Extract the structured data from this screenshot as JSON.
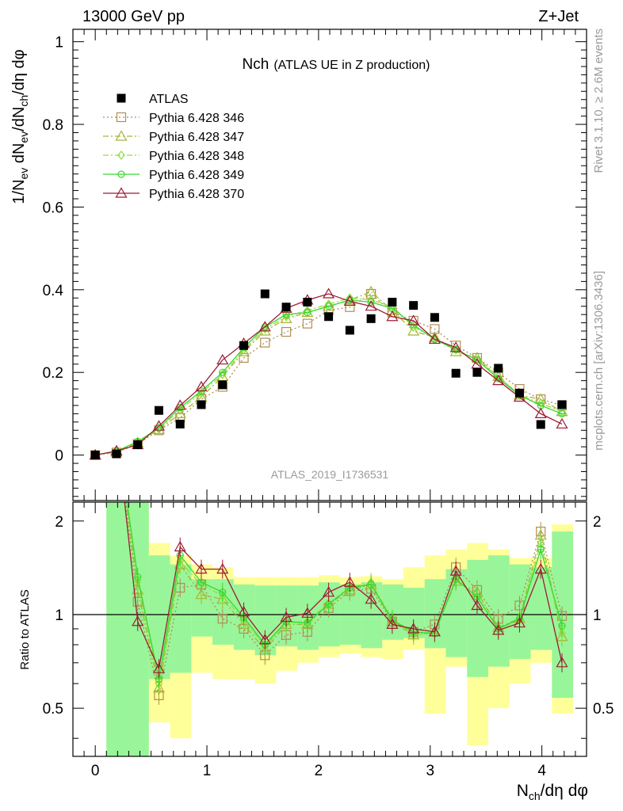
{
  "header": {
    "energy": "13000 GeV pp",
    "process": "Z+Jet",
    "side_top": "Rivet 3.1.10, ≥ 2.6M events",
    "side_bottom": "mcplots.cern.ch [arXiv:1306.3436]",
    "analysis": "ATLAS_2019_I1736531"
  },
  "chart_data": [
    {
      "type": "scatter",
      "title_main": "Nch",
      "title_sub": "(ATLAS UE in Z production)",
      "ylabel": "1/N_ev dN_ev/dN_ch/dη dφ",
      "xlim": [
        -0.2,
        4.4
      ],
      "ylim": [
        -0.11,
        1.03
      ],
      "yticks": [
        "0",
        "0.2",
        "0.4",
        "0.6",
        "0.8",
        "1"
      ],
      "legend_position": "top-left",
      "x": [
        0.0,
        0.19,
        0.38,
        0.57,
        0.76,
        0.95,
        1.14,
        1.33,
        1.52,
        1.71,
        1.9,
        2.09,
        2.28,
        2.47,
        2.66,
        2.85,
        3.04,
        3.23,
        3.42,
        3.61,
        3.8,
        3.99,
        4.18
      ],
      "series": [
        {
          "name": "ATLAS",
          "color": "#000000",
          "marker": "filled-square",
          "values": [
            0.0,
            0.003,
            0.025,
            0.108,
            0.075,
            0.122,
            0.17,
            0.265,
            0.39,
            0.358,
            0.37,
            0.335,
            0.302,
            0.33,
            0.37,
            0.362,
            0.333,
            0.198,
            0.2,
            0.21,
            0.15,
            0.074,
            0.122
          ]
        },
        {
          "name": "Pythia 6.428 346",
          "color": "#b08d57",
          "marker": "open-square",
          "dash": "2,3",
          "values": [
            0.0,
            0.006,
            0.027,
            0.06,
            0.09,
            0.135,
            0.165,
            0.235,
            0.272,
            0.298,
            0.318,
            0.35,
            0.358,
            0.39,
            0.345,
            0.325,
            0.305,
            0.265,
            0.235,
            0.2,
            0.16,
            0.135,
            0.12
          ]
        },
        {
          "name": "Pythia 6.428 347",
          "color": "#a8b530",
          "marker": "open-triangle",
          "dash": "7,3,2,3",
          "values": [
            0.0,
            0.007,
            0.03,
            0.062,
            0.1,
            0.14,
            0.19,
            0.25,
            0.3,
            0.33,
            0.345,
            0.36,
            0.375,
            0.395,
            0.35,
            0.3,
            0.285,
            0.25,
            0.235,
            0.19,
            0.145,
            0.135,
            0.105
          ]
        },
        {
          "name": "Pythia 6.428 348",
          "color": "#90e040",
          "marker": "open-diamond",
          "dash": "7,3,2,3",
          "values": [
            0.0,
            0.008,
            0.032,
            0.063,
            0.11,
            0.15,
            0.195,
            0.255,
            0.305,
            0.335,
            0.35,
            0.365,
            0.38,
            0.375,
            0.36,
            0.31,
            0.285,
            0.255,
            0.23,
            0.19,
            0.145,
            0.125,
            0.105
          ]
        },
        {
          "name": "Pythia 6.428 349",
          "color": "#38d830",
          "marker": "open-circle-cross",
          "dash": "",
          "values": [
            0.0,
            0.009,
            0.033,
            0.065,
            0.115,
            0.155,
            0.2,
            0.26,
            0.31,
            0.34,
            0.345,
            0.36,
            0.375,
            0.37,
            0.355,
            0.315,
            0.28,
            0.255,
            0.23,
            0.185,
            0.145,
            0.12,
            0.1
          ]
        },
        {
          "name": "Pythia 6.428 370",
          "color": "#9e1b32",
          "marker": "open-triangle",
          "dash": "",
          "values": [
            0.0,
            0.01,
            0.025,
            0.07,
            0.12,
            0.165,
            0.23,
            0.27,
            0.31,
            0.355,
            0.375,
            0.39,
            0.372,
            0.36,
            0.335,
            0.325,
            0.28,
            0.26,
            0.22,
            0.18,
            0.14,
            0.1,
            0.075
          ]
        }
      ]
    },
    {
      "type": "line",
      "ylabel": "Ratio to ATLAS",
      "xlabel": "N_ch/dη dφ",
      "xlim": [
        -0.2,
        4.4
      ],
      "ylim": [
        0.35,
        2.3
      ],
      "yticks": [
        "0.5",
        "1",
        "2"
      ],
      "xticks": [
        "0",
        "1",
        "2",
        "3",
        "4"
      ],
      "bands": {
        "bin_edges": [
          0.1,
          0.29,
          0.48,
          0.67,
          0.86,
          1.05,
          1.24,
          1.43,
          1.62,
          1.81,
          2.0,
          2.19,
          2.38,
          2.57,
          2.76,
          2.95,
          3.14,
          3.33,
          3.52,
          3.71,
          3.9,
          4.09,
          4.28
        ],
        "green_lo": [
          0.3,
          0.3,
          0.62,
          0.65,
          0.85,
          0.8,
          0.77,
          0.74,
          0.79,
          0.77,
          0.79,
          0.8,
          0.78,
          0.83,
          0.84,
          0.78,
          0.73,
          0.63,
          0.68,
          0.72,
          0.77,
          0.54,
          0.53
        ],
        "green_hi": [
          2.5,
          2.5,
          1.55,
          1.45,
          1.3,
          1.3,
          1.25,
          1.24,
          1.24,
          1.24,
          1.27,
          1.25,
          1.27,
          1.25,
          1.22,
          1.3,
          1.4,
          1.5,
          1.55,
          1.45,
          1.42,
          1.85,
          1.95
        ],
        "yellow_lo": [
          0.3,
          0.3,
          0.45,
          0.4,
          0.65,
          0.62,
          0.62,
          0.6,
          0.66,
          0.7,
          0.73,
          0.75,
          0.73,
          0.72,
          0.77,
          0.48,
          0.68,
          0.38,
          0.5,
          0.6,
          0.7,
          0.48,
          0.3
        ],
        "yellow_hi": [
          2.5,
          2.5,
          1.7,
          1.55,
          1.45,
          1.42,
          1.32,
          1.32,
          1.32,
          1.32,
          1.34,
          1.32,
          1.33,
          1.3,
          1.42,
          1.55,
          1.62,
          1.7,
          1.62,
          1.52,
          1.52,
          1.95,
          1.98
        ]
      },
      "series": [
        {
          "name": "Pythia 6.428 346",
          "values": [
            1.1,
            0.55,
            1.22,
            1.25,
            0.97,
            0.9,
            0.74,
            0.86,
            0.88,
            1.05,
            1.19,
            1.21,
            0.95,
            0.88,
            0.93,
            1.42,
            1.2,
            0.97,
            1.07,
            1.85,
            0.99
          ]
        },
        {
          "name": "Pythia 6.428 347",
          "values": [
            1.2,
            0.58,
            1.45,
            1.16,
            1.12,
            0.93,
            0.77,
            0.93,
            0.93,
            1.08,
            1.2,
            1.25,
            0.95,
            0.86,
            0.88,
            1.28,
            1.18,
            0.91,
            0.97,
            1.8,
            0.85
          ]
        },
        {
          "name": "Pythia 6.428 348",
          "values": [
            1.28,
            0.6,
            1.48,
            1.25,
            1.15,
            0.96,
            0.79,
            0.94,
            0.95,
            1.09,
            1.22,
            1.27,
            0.97,
            0.86,
            0.87,
            1.3,
            1.14,
            0.9,
            0.96,
            1.7,
            0.87
          ]
        },
        {
          "name": "Pythia 6.428 349",
          "values": [
            1.32,
            0.62,
            1.55,
            1.27,
            1.18,
            0.98,
            0.8,
            0.95,
            0.94,
            1.08,
            1.22,
            1.25,
            0.96,
            0.88,
            0.87,
            1.3,
            1.14,
            0.9,
            0.97,
            1.62,
            0.92
          ]
        },
        {
          "name": "Pythia 6.428 370",
          "values": [
            0.95,
            0.67,
            1.65,
            1.4,
            1.4,
            1.02,
            0.83,
            0.98,
            1.01,
            1.18,
            1.27,
            1.12,
            0.93,
            0.9,
            0.88,
            1.38,
            1.07,
            0.89,
            0.94,
            1.4,
            0.7
          ]
        }
      ]
    }
  ]
}
